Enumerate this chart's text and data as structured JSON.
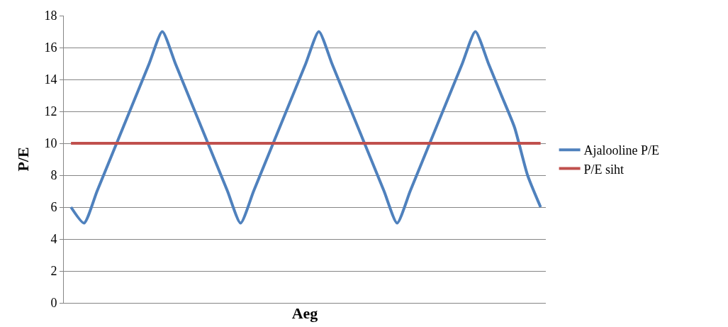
{
  "chart_data": {
    "type": "line",
    "xlabel": "Aeg",
    "ylabel": "P/E",
    "categories": [
      null,
      null,
      null,
      null,
      null,
      null,
      null,
      null,
      null,
      null,
      null,
      null,
      null,
      null,
      null,
      null,
      null,
      null,
      null,
      null,
      null,
      null,
      null,
      null,
      null,
      null,
      null,
      null,
      null,
      null,
      null,
      null,
      null,
      null,
      null,
      null,
      null
    ],
    "series": [
      {
        "name": "Ajalooline P/E",
        "color": "#4f81bd",
        "values": [
          6,
          5,
          7,
          9,
          11,
          13,
          15,
          17,
          15,
          13,
          11,
          9,
          7,
          5,
          7,
          9,
          11,
          13,
          15,
          17,
          15,
          13,
          11,
          9,
          7,
          5,
          7,
          9,
          11,
          13,
          15,
          17,
          15,
          13,
          11,
          8,
          6
        ]
      },
      {
        "name": "P/E siht",
        "color": "#c0504d",
        "values": [
          10,
          10,
          10,
          10,
          10,
          10,
          10,
          10,
          10,
          10,
          10,
          10,
          10,
          10,
          10,
          10,
          10,
          10,
          10,
          10,
          10,
          10,
          10,
          10,
          10,
          10,
          10,
          10,
          10,
          10,
          10,
          10,
          10,
          10,
          10,
          10,
          10
        ]
      }
    ],
    "ylim": [
      0,
      18
    ],
    "yticks": [
      0,
      2,
      4,
      6,
      8,
      10,
      12,
      14,
      16,
      18
    ],
    "grid": "y",
    "legend": "right",
    "marker": "none",
    "line_style": "solid"
  }
}
